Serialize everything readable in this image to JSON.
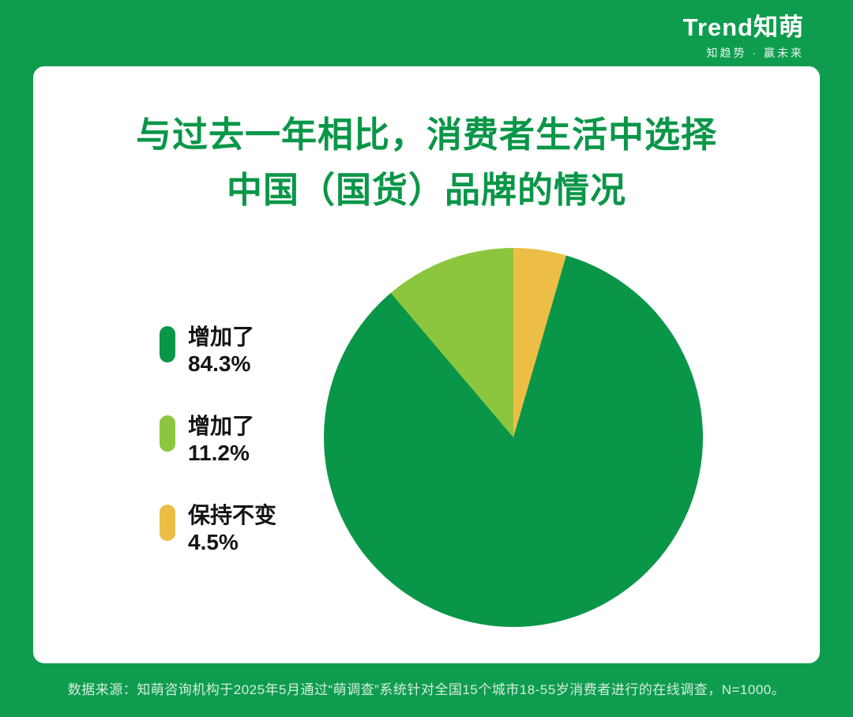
{
  "brand": {
    "logo_text": "Trend知萌",
    "tagline": "知趋势 · 赢未来"
  },
  "title": {
    "line1": "与过去一年相比，消费者生活中选择",
    "line2": "中国（国货）品牌的情况"
  },
  "chart_data": {
    "type": "pie",
    "title": "与过去一年相比，消费者生活中选择中国（国货）品牌的情况",
    "legend_position": "left",
    "slices": [
      {
        "label": "增加了",
        "value": 84.3,
        "color": "#0a9648"
      },
      {
        "label": "增加了",
        "value": 11.2,
        "color": "#8cc63e"
      },
      {
        "label": "保持不变",
        "value": 4.5,
        "color": "#ecbe45"
      }
    ],
    "orientation_note": "clockwise from top: yellow 4.5%, dark green 84.3%, light green 11.2%"
  },
  "legend": {
    "items": [
      {
        "label": "增加了",
        "percent": "84.3%",
        "color": "#0a9648"
      },
      {
        "label": "增加了",
        "percent": "11.2%",
        "color": "#8cc63e"
      },
      {
        "label": "保持不变",
        "percent": "4.5%",
        "color": "#ecbe45"
      }
    ]
  },
  "footer": {
    "source": "数据来源：知萌咨询机构于2025年5月通过“萌调查”系统针对全国15个城市18-55岁消费者进行的在线调查，N=1000。"
  },
  "colors": {
    "background_green": "#0e9d4e",
    "dark_green": "#0a9648",
    "light_green": "#8cc63e",
    "yellow": "#ecbe45",
    "card_white": "#ffffff"
  }
}
